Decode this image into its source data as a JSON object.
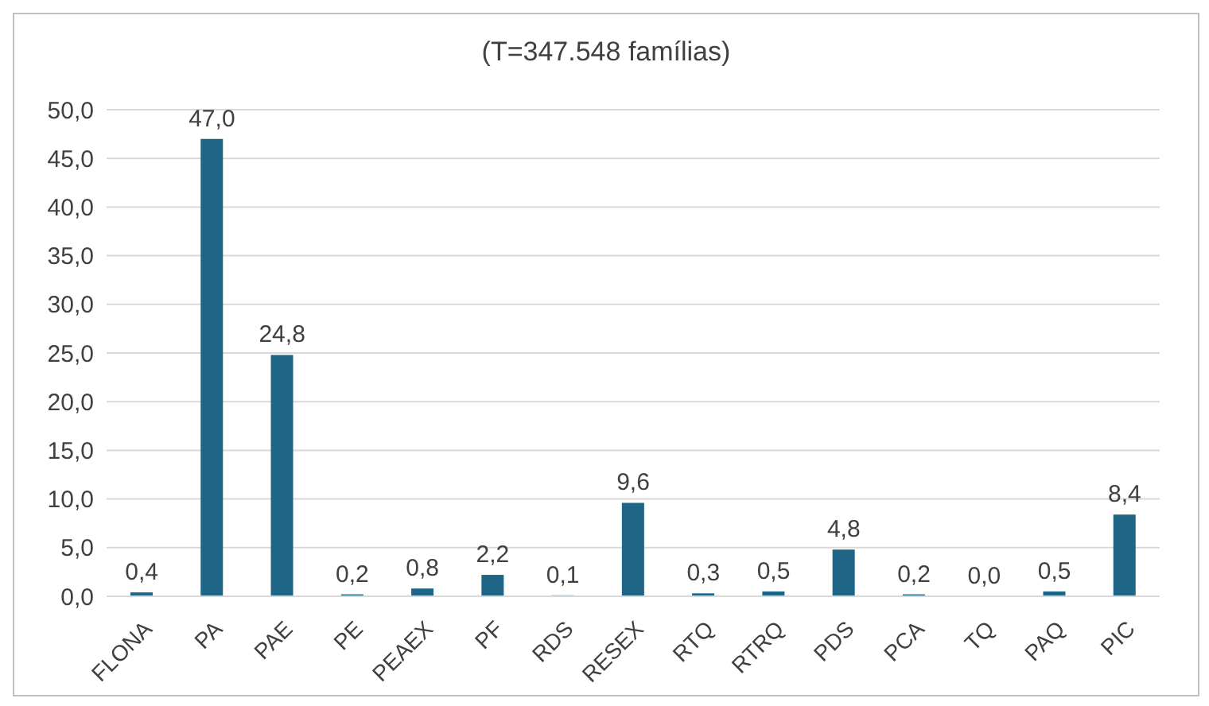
{
  "chart_data": {
    "type": "bar",
    "title": "(T=347.548 famílias)",
    "categories": [
      "FLONA",
      "PA",
      "PAE",
      "PE",
      "PEAEX",
      "PF",
      "RDS",
      "RESEX",
      "RTQ",
      "RTRQ",
      "PDS",
      "PCA",
      "TQ",
      "PAQ",
      "PIC"
    ],
    "values": [
      0.4,
      47.0,
      24.8,
      0.2,
      0.8,
      2.2,
      0.1,
      9.6,
      0.3,
      0.5,
      4.8,
      0.2,
      0.0,
      0.5,
      8.4
    ],
    "value_labels": [
      "0,4",
      "47,0",
      "24,8",
      "0,2",
      "0,8",
      "2,2",
      "0,1",
      "9,6",
      "0,3",
      "0,5",
      "4,8",
      "0,2",
      "0,0",
      "0,5",
      "8,4"
    ],
    "color": "#1f6585",
    "ylim": [
      0,
      50
    ],
    "yticks": [
      {
        "value": 0,
        "label": "0,0"
      },
      {
        "value": 5,
        "label": "5,0"
      },
      {
        "value": 10,
        "label": "10,0"
      },
      {
        "value": 15,
        "label": "15,0"
      },
      {
        "value": 20,
        "label": "20,0"
      },
      {
        "value": 25,
        "label": "25,0"
      },
      {
        "value": 30,
        "label": "30,0"
      },
      {
        "value": 35,
        "label": "35,0"
      },
      {
        "value": 40,
        "label": "40,0"
      },
      {
        "value": 45,
        "label": "45,0"
      },
      {
        "value": 50,
        "label": "50,0"
      }
    ],
    "grid": "y"
  }
}
